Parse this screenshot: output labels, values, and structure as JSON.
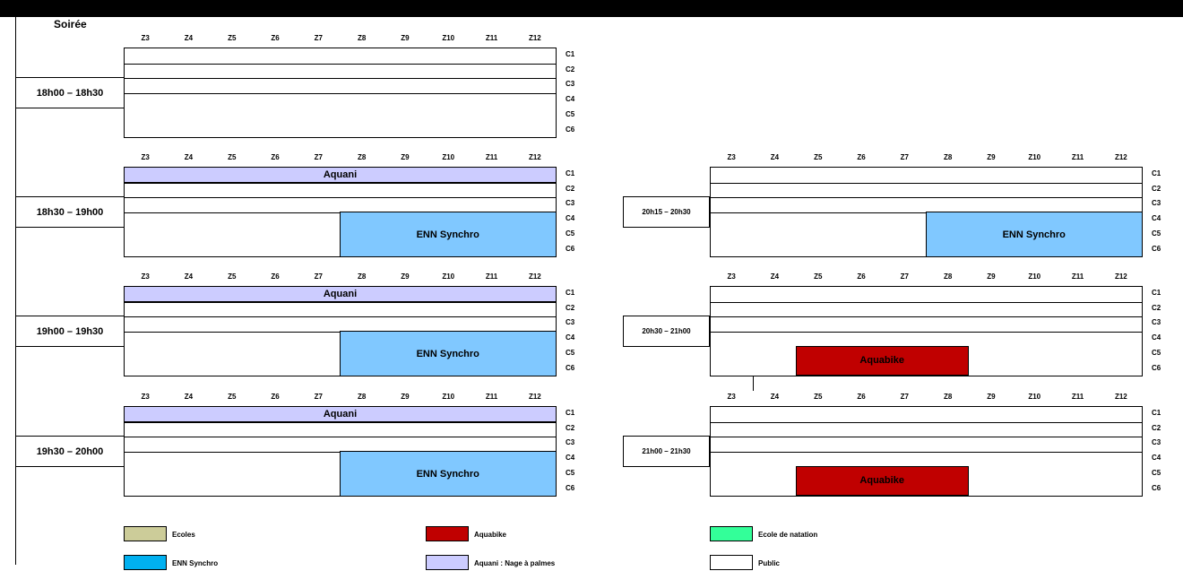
{
  "section_title": "Soirée",
  "zones": [
    "Z3",
    "Z4",
    "Z5",
    "Z6",
    "Z7",
    "Z8",
    "Z9",
    "Z10",
    "Z11",
    "Z12"
  ],
  "lanes": [
    "C1",
    "C2",
    "C3",
    "C4",
    "C5",
    "C6"
  ],
  "slots_left": [
    {
      "time": "18h00 – 18h30",
      "blocks": []
    },
    {
      "time": "18h30 – 19h00",
      "blocks": [
        {
          "label": "Aquani",
          "type": "aquani"
        },
        {
          "label": "ENN Synchro",
          "type": "synchro"
        }
      ]
    },
    {
      "time": "19h00 – 19h30",
      "blocks": [
        {
          "label": "Aquani",
          "type": "aquani"
        },
        {
          "label": "ENN Synchro",
          "type": "synchro"
        }
      ]
    },
    {
      "time": "19h30 – 20h00",
      "blocks": [
        {
          "label": "Aquani",
          "type": "aquani"
        },
        {
          "label": "ENN Synchro",
          "type": "synchro"
        }
      ]
    }
  ],
  "slots_right": [
    {
      "time": "20h15 – 20h30",
      "blocks": [
        {
          "label": "ENN Synchro",
          "type": "synchro"
        }
      ]
    },
    {
      "time": "20h30 – 21h00",
      "blocks": [
        {
          "label": "Aquabike",
          "type": "aquabike"
        }
      ]
    },
    {
      "time": "21h00 – 21h30",
      "blocks": [
        {
          "label": "Aquabike",
          "type": "aquabike"
        }
      ]
    }
  ],
  "legend": [
    {
      "label": "Ecoles",
      "color": "#cccc99"
    },
    {
      "label": "Aquabike",
      "color": "#c00000"
    },
    {
      "label": "Ecole de natation",
      "color": "#33ff99"
    },
    {
      "label": "ENN Synchro",
      "color": "#00b0f0"
    },
    {
      "label": "Aquani : Nage à palmes",
      "color": "#ccccff"
    },
    {
      "label": "Public",
      "color": "#ffffff"
    }
  ]
}
